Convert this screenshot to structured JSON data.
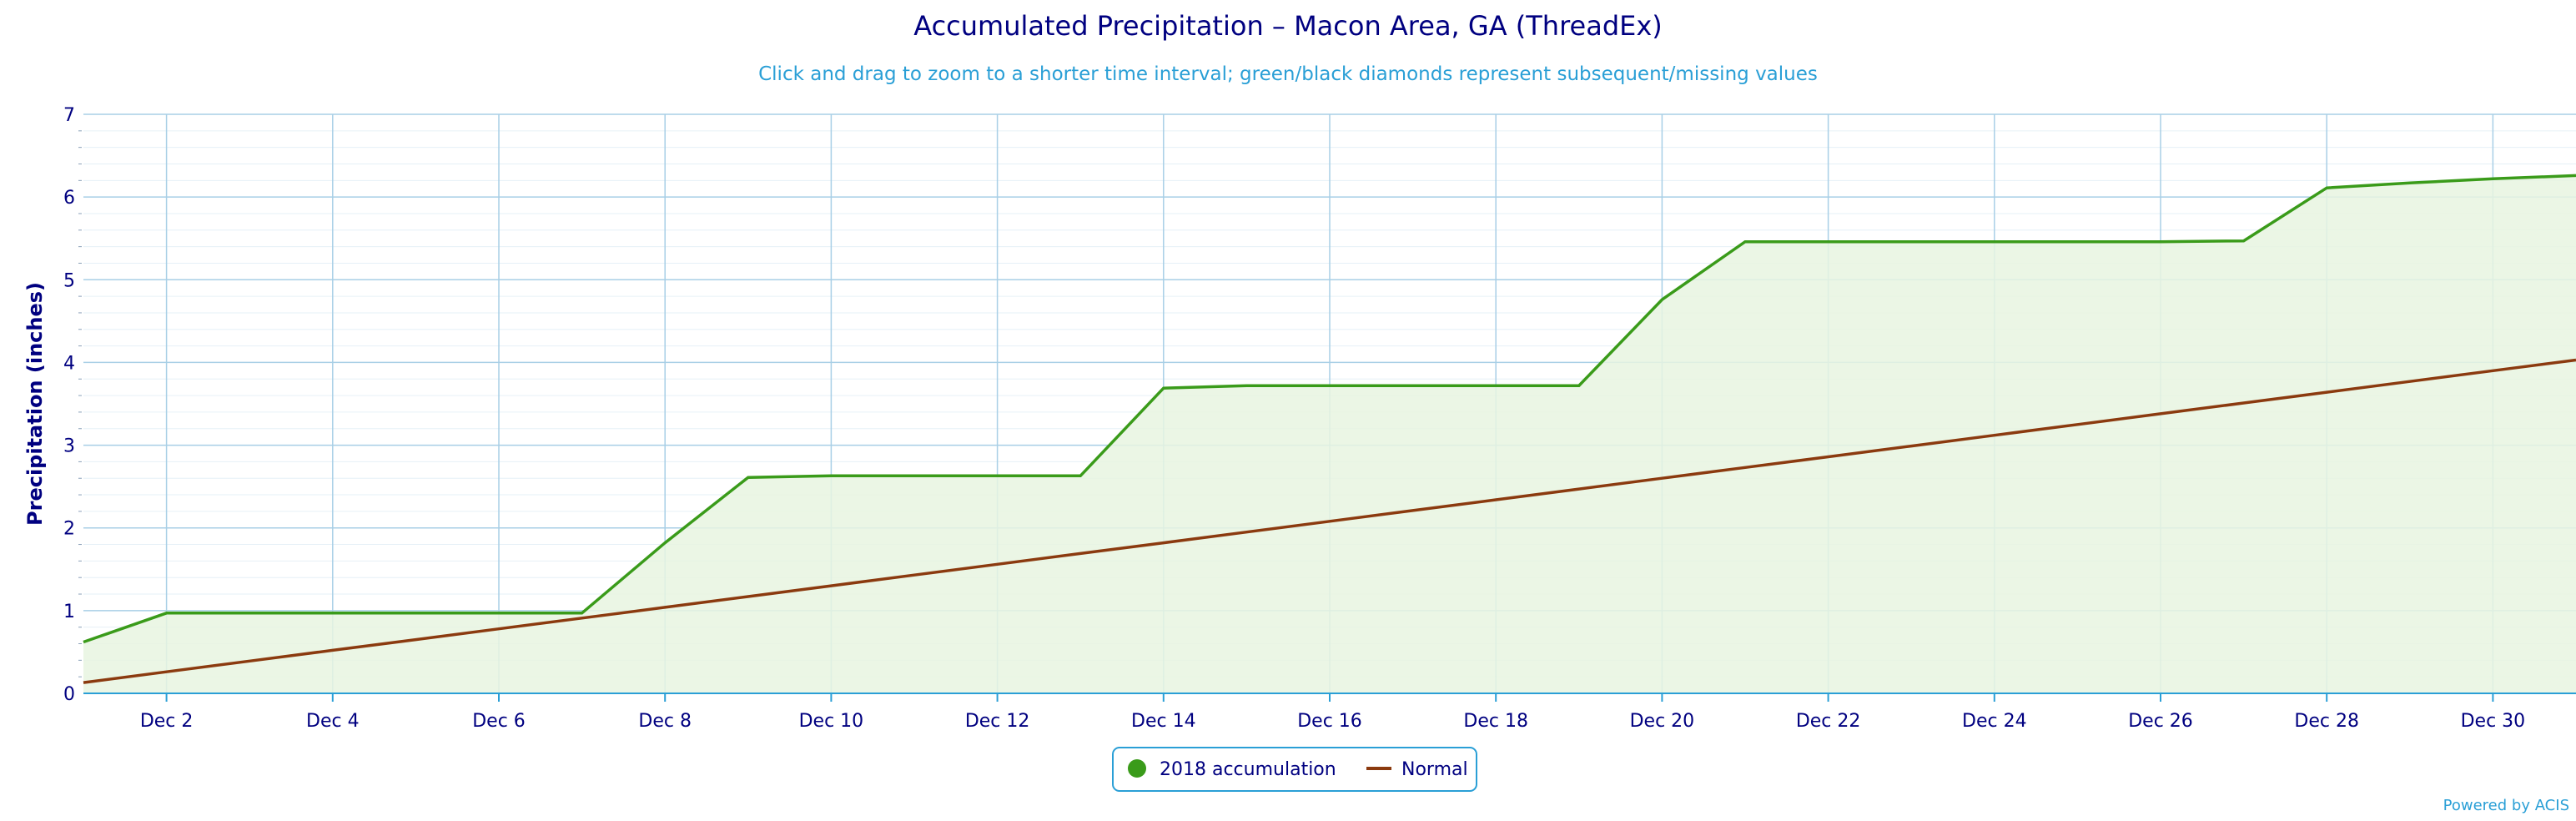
{
  "chart_data": {
    "type": "area",
    "title": "Accumulated Precipitation – Macon Area, GA (ThreadEx)",
    "subtitle": "Click and drag to zoom to a shorter time interval; green/black diamonds represent subsequent/missing values",
    "xlabel": "",
    "ylabel": "Precipitation (inches)",
    "ylim": [
      0,
      7
    ],
    "yticks": [
      0,
      1,
      2,
      3,
      4,
      5,
      6,
      7
    ],
    "xticks": [
      "Dec 2",
      "Dec 4",
      "Dec 6",
      "Dec 8",
      "Dec 10",
      "Dec 12",
      "Dec 14",
      "Dec 16",
      "Dec 18",
      "Dec 20",
      "Dec 22",
      "Dec 24",
      "Dec 26",
      "Dec 28",
      "Dec 30"
    ],
    "xlim": [
      "2018-12-01",
      "2018-12-31"
    ],
    "grid": true,
    "legend_position": "bottom-center",
    "x": [
      "2018-12-01",
      "2018-12-02",
      "2018-12-03",
      "2018-12-04",
      "2018-12-05",
      "2018-12-06",
      "2018-12-07",
      "2018-12-08",
      "2018-12-09",
      "2018-12-10",
      "2018-12-11",
      "2018-12-12",
      "2018-12-13",
      "2018-12-14",
      "2018-12-15",
      "2018-12-16",
      "2018-12-17",
      "2018-12-18",
      "2018-12-19",
      "2018-12-20",
      "2018-12-21",
      "2018-12-22",
      "2018-12-23",
      "2018-12-24",
      "2018-12-25",
      "2018-12-26",
      "2018-12-27",
      "2018-12-28",
      "2018-12-29",
      "2018-12-30",
      "2018-12-31"
    ],
    "series": [
      {
        "name": "2018 accumulation",
        "color": "#3a9b1a",
        "fill": "#e8f4e0",
        "values": [
          0.62,
          0.97,
          0.97,
          0.97,
          0.97,
          0.97,
          0.97,
          1.82,
          2.61,
          2.63,
          2.63,
          2.63,
          2.63,
          3.69,
          3.72,
          3.72,
          3.72,
          3.72,
          3.72,
          4.76,
          5.46,
          5.46,
          5.46,
          5.46,
          5.46,
          5.46,
          5.47,
          6.11,
          6.17,
          6.22,
          6.26
        ]
      },
      {
        "name": "Normal",
        "color": "#8b3a0f",
        "values": [
          0.13,
          0.26,
          0.39,
          0.52,
          0.65,
          0.78,
          0.91,
          1.04,
          1.17,
          1.3,
          1.43,
          1.56,
          1.69,
          1.82,
          1.95,
          2.08,
          2.21,
          2.34,
          2.47,
          2.6,
          2.73,
          2.86,
          2.99,
          3.12,
          3.25,
          3.38,
          3.51,
          3.64,
          3.77,
          3.9,
          4.03
        ]
      }
    ]
  },
  "credits": "Powered by ACIS"
}
